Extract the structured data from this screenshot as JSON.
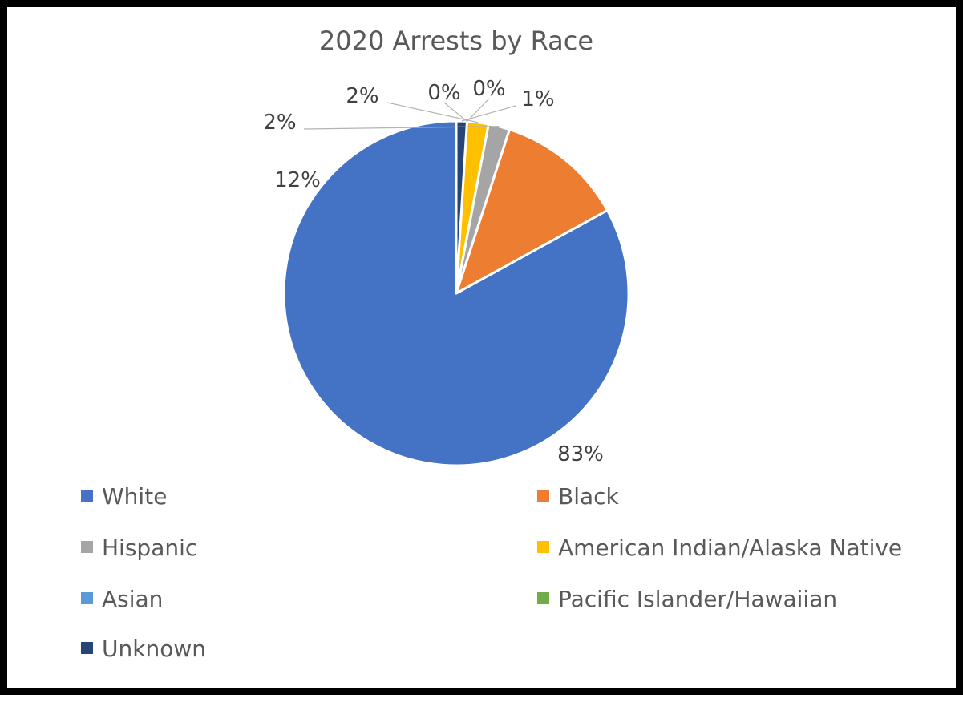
{
  "chart_data": {
    "type": "pie",
    "title": "2020 Arrests by Race",
    "categories": [
      "White",
      "Black",
      "Hispanic",
      "American Indian/Alaska Native",
      "Asian",
      "Pacific Islander/Hawaiian",
      "Unknown"
    ],
    "values": [
      83,
      12,
      2,
      2,
      0,
      0,
      1
    ],
    "data_labels": [
      "83%",
      "12%",
      "2%",
      "2%",
      "0%",
      "0%",
      "1%"
    ],
    "colors": [
      "#4472C4",
      "#ED7D31",
      "#A5A5A5",
      "#FFC000",
      "#5B9BD5",
      "#70AD47",
      "#264478"
    ],
    "legend_position": "bottom",
    "start_angle": "12 o'clock",
    "direction": "counterclockwise"
  }
}
